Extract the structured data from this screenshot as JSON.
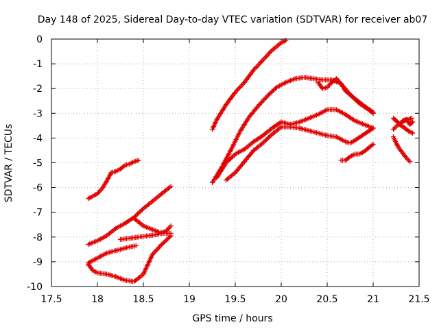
{
  "chart_data": {
    "type": "scatter",
    "title": "Day 148 of 2025, Sidereal Day-to-day VTEC variation (SDTVAR) for receiver ab07",
    "xlabel": "GPS time / hours",
    "ylabel": "SDTVAR / TECUs",
    "xlim": [
      17.5,
      21.5
    ],
    "ylim": [
      -10,
      0
    ],
    "xticks": [
      "17.5",
      "18",
      "18.5",
      "19",
      "19.5",
      "20",
      "20.5",
      "21",
      "21.5"
    ],
    "yticks": [
      "0",
      "-1",
      "-2",
      "-3",
      "-4",
      "-5",
      "-6",
      "-7",
      "-8",
      "-9",
      "-10"
    ],
    "grid": true,
    "marker": "plus",
    "color": "#e00000",
    "series": [
      {
        "x": [
          17.9,
          17.95,
          18.0,
          18.05,
          18.1,
          18.15,
          18.2,
          18.25,
          18.3,
          18.35,
          18.4,
          18.45
        ],
        "y": [
          -6.45,
          -6.35,
          -6.25,
          -6.05,
          -5.75,
          -5.4,
          -5.35,
          -5.25,
          -5.1,
          -5.05,
          -4.95,
          -4.9
        ]
      },
      {
        "x": [
          17.9,
          18.0,
          18.1,
          18.2,
          18.3,
          18.4,
          18.5,
          18.6,
          18.7,
          18.8
        ],
        "y": [
          -8.3,
          -8.15,
          -7.95,
          -7.65,
          -7.45,
          -7.2,
          -6.85,
          -6.55,
          -6.25,
          -5.95
        ]
      },
      {
        "x": [
          17.9,
          17.95,
          18.0,
          18.05,
          18.1,
          18.15,
          18.2,
          18.3,
          18.35,
          18.42
        ],
        "y": [
          -9.05,
          -8.95,
          -8.85,
          -8.75,
          -8.65,
          -8.6,
          -8.55,
          -8.45,
          -8.4,
          -8.35
        ]
      },
      {
        "x": [
          17.9,
          17.95,
          18.0,
          18.1,
          18.2,
          18.3,
          18.4,
          18.5,
          18.55,
          18.6,
          18.7,
          18.8
        ],
        "y": [
          -9.1,
          -9.35,
          -9.45,
          -9.5,
          -9.6,
          -9.75,
          -9.8,
          -9.5,
          -9.1,
          -8.7,
          -8.3,
          -7.95
        ]
      },
      {
        "x": [
          18.25,
          18.35,
          18.45,
          18.55,
          18.65,
          18.75,
          18.8
        ],
        "y": [
          -8.1,
          -8.05,
          -8.0,
          -7.95,
          -7.9,
          -7.75,
          -7.55
        ]
      },
      {
        "x": [
          18.4,
          18.5,
          18.6,
          18.7,
          18.8
        ],
        "y": [
          -7.25,
          -7.55,
          -7.7,
          -7.85,
          -7.85
        ]
      },
      {
        "x": [
          19.25,
          19.3,
          19.35,
          19.4,
          19.45,
          19.5,
          19.6,
          19.7,
          19.8,
          19.9,
          20.0,
          20.05
        ],
        "y": [
          -3.65,
          -3.25,
          -2.95,
          -2.65,
          -2.4,
          -2.15,
          -1.75,
          -1.25,
          -0.85,
          -0.45,
          -0.15,
          -0.05
        ]
      },
      {
        "x": [
          19.25,
          19.35,
          19.45,
          19.55,
          19.65,
          19.75,
          19.85,
          19.95,
          20.05,
          20.15,
          20.25,
          20.35,
          20.45,
          20.55,
          20.65,
          20.75,
          20.85,
          20.95,
          21.0
        ],
        "y": [
          -5.8,
          -5.2,
          -4.5,
          -3.75,
          -3.15,
          -2.7,
          -2.3,
          -1.95,
          -1.75,
          -1.6,
          -1.55,
          -1.6,
          -1.65,
          -1.65,
          -1.8,
          -2.25,
          -2.6,
          -2.85,
          -3.0
        ]
      },
      {
        "x": [
          20.4,
          20.45,
          20.5,
          20.55,
          20.6,
          20.65,
          20.7,
          20.8,
          20.9,
          21.0
        ],
        "y": [
          -1.75,
          -2.0,
          -1.95,
          -1.75,
          -1.6,
          -1.8,
          -2.1,
          -2.4,
          -2.7,
          -2.95
        ]
      },
      {
        "x": [
          19.3,
          19.4,
          19.5,
          19.6,
          19.7,
          19.8,
          19.9,
          20.0,
          20.1,
          20.2,
          20.3,
          20.4,
          20.5,
          20.6,
          20.7,
          20.8,
          20.9,
          21.0
        ],
        "y": [
          -5.6,
          -5.0,
          -4.65,
          -4.45,
          -4.15,
          -3.9,
          -3.6,
          -3.35,
          -3.45,
          -3.35,
          -3.2,
          -3.05,
          -2.85,
          -2.85,
          -3.05,
          -3.3,
          -3.45,
          -3.6
        ]
      },
      {
        "x": [
          19.4,
          19.5,
          19.6,
          19.7,
          19.8,
          19.9,
          20.0,
          20.1,
          20.2,
          20.3,
          20.4,
          20.5,
          20.6,
          20.7,
          20.75,
          20.8,
          20.9,
          21.0
        ],
        "y": [
          -5.7,
          -5.4,
          -4.95,
          -4.5,
          -4.2,
          -3.85,
          -3.55,
          -3.55,
          -3.6,
          -3.7,
          -3.8,
          -3.9,
          -3.95,
          -4.15,
          -4.2,
          -4.1,
          -3.85,
          -3.6
        ]
      },
      {
        "x": [
          20.65,
          20.7,
          20.75,
          20.8,
          20.85,
          20.9,
          20.95,
          21.0
        ],
        "y": [
          -4.9,
          -4.9,
          -4.75,
          -4.65,
          -4.65,
          -4.55,
          -4.4,
          -4.25
        ]
      },
      {
        "x": [
          21.22,
          21.25,
          21.28,
          21.3,
          21.33,
          21.36,
          21.4,
          21.43
        ],
        "y": [
          -3.2,
          -3.3,
          -3.4,
          -3.5,
          -3.55,
          -3.65,
          -3.75,
          -3.8
        ]
      },
      {
        "x": [
          21.22,
          21.26,
          21.3,
          21.34,
          21.38,
          21.42
        ],
        "y": [
          -3.65,
          -3.5,
          -3.4,
          -3.3,
          -3.25,
          -3.2
        ]
      },
      {
        "x": [
          21.22,
          21.25,
          21.28,
          21.32,
          21.36,
          21.4
        ],
        "y": [
          -3.95,
          -4.2,
          -4.4,
          -4.6,
          -4.8,
          -4.95
        ]
      },
      {
        "x": [
          21.32,
          21.36,
          21.4,
          21.43
        ],
        "y": [
          -3.3,
          -3.25,
          -3.45,
          -3.35
        ]
      }
    ]
  }
}
